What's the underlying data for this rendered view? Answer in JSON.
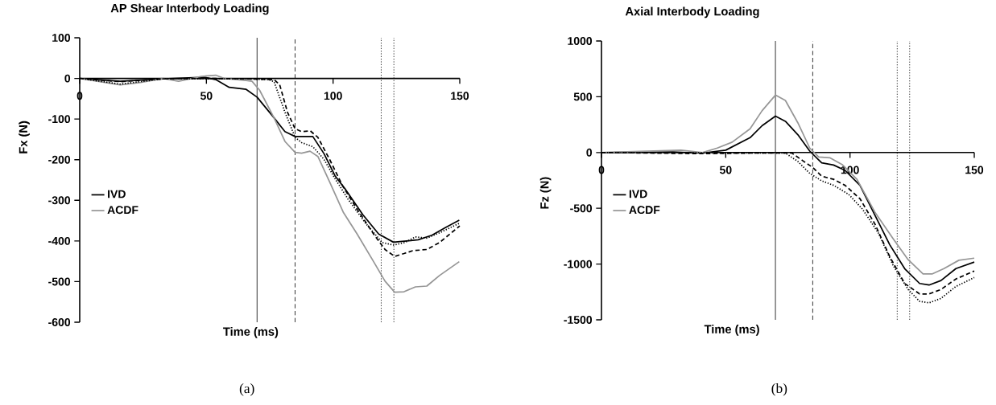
{
  "chart_data": [
    {
      "type": "line",
      "title": "AP Shear Interbody Loading",
      "xlabel": "Time (ms)",
      "ylabel": "Fx (N)",
      "annotations": [
        "(a)"
      ],
      "xlim": [
        0,
        150
      ],
      "ylim": [
        -600,
        100
      ],
      "xticks": [
        0,
        50,
        100,
        150
      ],
      "yticks": [
        -600,
        -500,
        -400,
        -300,
        -200,
        -100,
        0,
        100
      ],
      "legend": "left",
      "ref_lines": [
        {
          "axis": "x",
          "value": 70,
          "color": "#000000",
          "line_style": "solid"
        },
        {
          "axis": "x",
          "value": 85,
          "color": "#000000",
          "line_style": "dashed"
        },
        {
          "axis": "x",
          "value": 119,
          "color": "#000000",
          "line_style": "dotted"
        },
        {
          "axis": "x",
          "value": 124,
          "color": "#000000",
          "line_style": "dotted"
        }
      ],
      "series": [
        {
          "name": "IVD",
          "color": "#000000",
          "line_style": "solid",
          "x": [
            0,
            16,
            33,
            49,
            53.7,
            59,
            65.7,
            70,
            76.7,
            81,
            85,
            92,
            96.4,
            100.8,
            105,
            111.7,
            118,
            123.8,
            129,
            133.6,
            139,
            144.6,
            149.8
          ],
          "values": [
            0,
            -7,
            -1,
            3,
            -3,
            -22,
            -27,
            -46,
            -97,
            -131,
            -143,
            -143,
            -185,
            -240,
            -274,
            -335,
            -383,
            -403,
            -400,
            -397,
            -386,
            -366,
            -349
          ]
        },
        {
          "name": "ACDF",
          "color": "#969696",
          "line_style": "solid",
          "x": [
            0,
            16,
            24,
            33,
            39,
            48,
            53.7,
            57,
            65.7,
            68,
            71,
            76.7,
            81,
            85,
            87.6,
            90.9,
            94,
            98.6,
            104,
            109.5,
            116,
            120.5,
            124.3,
            128,
            132.5,
            137,
            142,
            149.8
          ],
          "values": [
            0,
            -16,
            -10,
            0,
            -7,
            5,
            8,
            0,
            -5,
            -7,
            -29,
            -97,
            -155,
            -182,
            -184,
            -179,
            -192,
            -254,
            -329,
            -383,
            -451,
            -499,
            -526,
            -525,
            -513,
            -511,
            -485,
            -451
          ]
        },
        {
          "color": "#000000",
          "line_style": "dashed",
          "x": [
            0,
            16,
            33,
            49,
            65.7,
            76.7,
            78.9,
            82,
            85,
            87.6,
            91,
            94,
            98.6,
            104,
            109.5,
            116,
            120.5,
            124.3,
            128,
            131.4,
            137,
            142,
            150
          ],
          "values": [
            0,
            -8,
            -1,
            0,
            -1,
            -3,
            -15,
            -83,
            -124,
            -131,
            -129,
            -145,
            -199,
            -267,
            -322,
            -383,
            -421,
            -438,
            -431,
            -424,
            -421,
            -404,
            -363
          ]
        },
        {
          "color": "#000000",
          "line_style": "dotted",
          "x": [
            0,
            16,
            33,
            49,
            65.7,
            74.5,
            76.7,
            81,
            85,
            87.6,
            92,
            96.4,
            100.8,
            106,
            112.8,
            119.4,
            123.8,
            128.3,
            132.5,
            137,
            142,
            150
          ],
          "values": [
            0,
            -14,
            -1,
            -1,
            -1,
            -3,
            -8,
            -83,
            -145,
            -158,
            -168,
            -199,
            -247,
            -298,
            -356,
            -404,
            -410,
            -404,
            -390,
            -393,
            -380,
            -356
          ]
        }
      ]
    },
    {
      "type": "line",
      "title": "Axial Interbody Loading",
      "xlabel": "Time (ms)",
      "ylabel": "Fz (N)",
      "annotations": [
        "(b)"
      ],
      "xlim": [
        0,
        150
      ],
      "ylim": [
        -1500,
        1000
      ],
      "xticks": [
        0,
        50,
        100,
        150
      ],
      "yticks": [
        -1500,
        -1000,
        -500,
        0,
        500,
        1000
      ],
      "legend": "left",
      "ref_lines": [
        {
          "axis": "x",
          "value": 70,
          "color": "#000000",
          "line_style": "solid"
        },
        {
          "axis": "x",
          "value": 85,
          "color": "#000000",
          "line_style": "dashed"
        },
        {
          "axis": "x",
          "value": 119,
          "color": "#000000",
          "line_style": "dotted"
        },
        {
          "axis": "x",
          "value": 124,
          "color": "#000000",
          "line_style": "dotted"
        }
      ],
      "series": [
        {
          "name": "IVD",
          "color": "#000000",
          "line_style": "solid",
          "x": [
            0,
            28.6,
            40.6,
            50,
            59.8,
            64.6,
            70,
            74,
            79,
            83.8,
            88.6,
            93.4,
            98,
            104,
            110,
            116,
            122,
            128,
            131.8,
            136.6,
            142.6,
            150
          ],
          "values": [
            0,
            5,
            -5,
            21,
            133,
            240,
            326,
            280,
            160,
            13,
            -93,
            -112,
            -160,
            -294,
            -560,
            -827,
            -1041,
            -1174,
            -1188,
            -1148,
            -1041,
            -982
          ]
        },
        {
          "name": "ACDF",
          "color": "#969696",
          "line_style": "solid",
          "x": [
            0,
            32,
            40.6,
            46.6,
            52.6,
            59.8,
            64.6,
            70,
            74,
            79,
            83.8,
            87.4,
            92,
            96.8,
            102.8,
            110,
            117.4,
            123.4,
            129.4,
            133,
            137.8,
            143.8,
            150
          ],
          "values": [
            0,
            21,
            0,
            40,
            93,
            213,
            374,
            515,
            467,
            267,
            40,
            -40,
            -48,
            -107,
            -240,
            -534,
            -774,
            -961,
            -1089,
            -1089,
            -1041,
            -966,
            -947
          ]
        },
        {
          "color": "#000000",
          "line_style": "dashed",
          "x": [
            0,
            40.6,
            59.8,
            76.6,
            81.4,
            85,
            88.6,
            93.4,
            98,
            104,
            110,
            116,
            122,
            128,
            131.8,
            136.6,
            142.6,
            150
          ],
          "values": [
            0,
            -10,
            -5,
            -5,
            -80,
            -133,
            -213,
            -240,
            -294,
            -414,
            -640,
            -934,
            -1174,
            -1268,
            -1268,
            -1228,
            -1134,
            -1062
          ]
        },
        {
          "color": "#000000",
          "line_style": "dotted",
          "x": [
            0,
            40,
            74,
            79,
            83.8,
            88.6,
            93.4,
            99.4,
            105,
            111.4,
            117.4,
            123.4,
            128,
            131.8,
            136.6,
            142.6,
            150
          ],
          "values": [
            0,
            -3,
            -5,
            -80,
            -187,
            -254,
            -294,
            -374,
            -507,
            -721,
            -1014,
            -1228,
            -1334,
            -1348,
            -1308,
            -1201,
            -1121
          ]
        }
      ]
    }
  ]
}
